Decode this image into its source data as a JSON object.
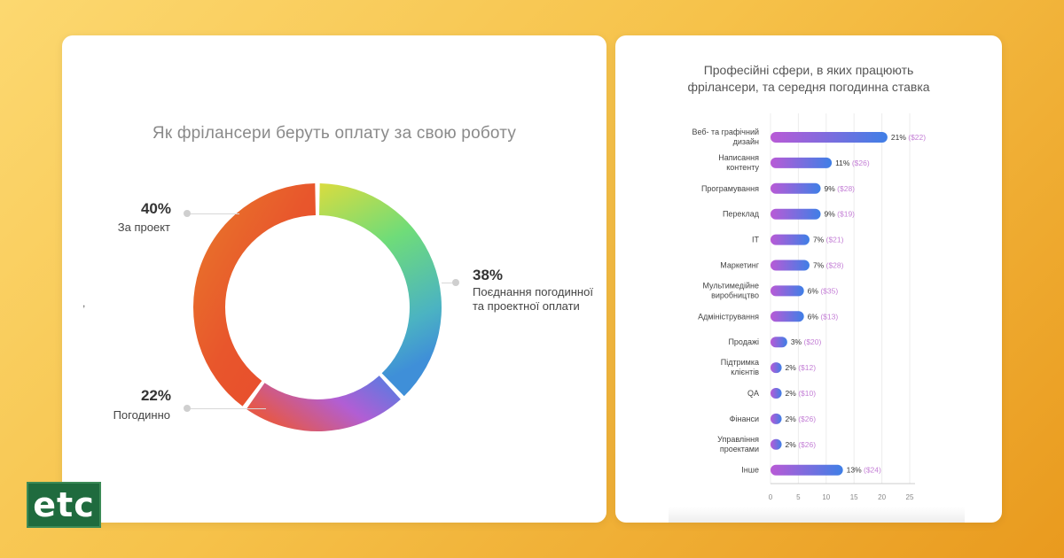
{
  "colors": {
    "background_start": "#fcd870",
    "background_end": "#e99a1e",
    "logo_bg": "#1f6b3e",
    "bar_gradient_start": "#b95ad6",
    "bar_gradient_end": "#3f7fe6",
    "rate_text": "#c47fd6"
  },
  "logo": {
    "text": "etc"
  },
  "stray_mark": ",",
  "chart_data": [
    {
      "type": "pie",
      "title": "Як фрілансери беруть оплату за свою роботу",
      "donut": true,
      "categories": [
        "За проект",
        "Поєднання погодинної та проектної оплати",
        "Погодинно"
      ],
      "values": [
        40,
        38,
        22
      ],
      "value_labels": [
        "40%",
        "38%",
        "22%"
      ],
      "label_lines": [
        [
          "За проект"
        ],
        [
          "Поєднання погодинної",
          "та проектної оплати"
        ],
        [
          "Погодинно"
        ]
      ]
    },
    {
      "type": "bar",
      "orientation": "horizontal",
      "title_lines": [
        "Професійні сфери, в яких працюють",
        "фрілансери, та середня погодинна ставка"
      ],
      "categories": [
        "Веб- та графічний дизайн",
        "Написання контенту",
        "Програмування",
        "Переклад",
        "IT",
        "Маркетинг",
        "Мультимедійне виробництво",
        "Адміністрування",
        "Продажі",
        "Підтримка клієнтів",
        "QA",
        "Фінанси",
        "Управління проектами",
        "Інше"
      ],
      "category_lines": [
        [
          "Веб- та графічний",
          "дизайн"
        ],
        [
          "Написання",
          "контенту"
        ],
        [
          "Програмування"
        ],
        [
          "Переклад"
        ],
        [
          "IT"
        ],
        [
          "Маркетинг"
        ],
        [
          "Мультимедійне",
          "виробництво"
        ],
        [
          "Адміністрування"
        ],
        [
          "Продажі"
        ],
        [
          "Підтримка",
          "клієнтів"
        ],
        [
          "QA"
        ],
        [
          "Фінанси"
        ],
        [
          "Управління",
          "проектами"
        ],
        [
          "Інше"
        ]
      ],
      "values": [
        21,
        11,
        9,
        9,
        7,
        7,
        6,
        6,
        3,
        2,
        2,
        2,
        2,
        13
      ],
      "value_labels": [
        "21%",
        "11%",
        "9%",
        "9%",
        "7%",
        "7%",
        "6%",
        "6%",
        "3%",
        "2%",
        "2%",
        "2%",
        "2%",
        "13%"
      ],
      "hourly_rate_labels": [
        "($22)",
        "($26)",
        "($28)",
        "($19)",
        "($21)",
        "($28)",
        "($35)",
        "($13)",
        "($20)",
        "($12)",
        "($10)",
        "($26)",
        "($26)",
        "($24)"
      ],
      "xlim": [
        0,
        25
      ],
      "xticks": [
        0,
        5,
        10,
        15,
        20,
        25
      ],
      "grid": true
    }
  ]
}
